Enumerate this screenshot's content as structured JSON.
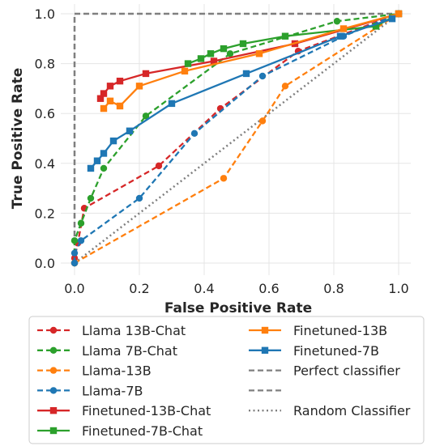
{
  "chart_data": {
    "type": "line",
    "xlabel": "False Positive Rate",
    "ylabel": "True Positive Rate",
    "xlim": [
      0,
      1
    ],
    "ylim": [
      0,
      1
    ],
    "xticks": [
      0.0,
      0.2,
      0.4,
      0.6,
      0.8,
      1.0
    ],
    "yticks": [
      0.0,
      0.2,
      0.4,
      0.6,
      0.8,
      1.0
    ],
    "xtick_labels": [
      "0.0",
      "0.2",
      "0.4",
      "0.6",
      "0.8",
      "1.0"
    ],
    "ytick_labels": [
      "0.0",
      "0.2",
      "0.4",
      "0.6",
      "0.8",
      "1.0"
    ],
    "grid": true,
    "legend_position": "below",
    "series": [
      {
        "name": "Llama 13B-Chat",
        "color": "#d62728",
        "linestyle": "dashed",
        "marker": "circle",
        "x": [
          0.0,
          0.0,
          0.01,
          0.03,
          0.26,
          0.45,
          0.69,
          1.0
        ],
        "y": [
          0.0,
          0.02,
          0.08,
          0.22,
          0.39,
          0.62,
          0.85,
          1.0
        ]
      },
      {
        "name": "Llama 7B-Chat",
        "color": "#2ca02c",
        "linestyle": "dashed",
        "marker": "circle",
        "x": [
          0.0,
          0.0,
          0.02,
          0.05,
          0.09,
          0.22,
          0.48,
          0.81,
          1.0
        ],
        "y": [
          0.0,
          0.09,
          0.16,
          0.26,
          0.38,
          0.59,
          0.84,
          0.97,
          1.0
        ]
      },
      {
        "name": "Llama-13B",
        "color": "#ff7f0e",
        "linestyle": "dashed",
        "marker": "circle",
        "x": [
          0.0,
          0.46,
          0.58,
          0.65,
          1.0
        ],
        "y": [
          0.0,
          0.34,
          0.57,
          0.71,
          1.0
        ]
      },
      {
        "name": "Llama-7B",
        "color": "#1f77b4",
        "linestyle": "dashed",
        "marker": "circle",
        "x": [
          0.0,
          0.0,
          0.02,
          0.2,
          0.37,
          0.58,
          0.83,
          1.0
        ],
        "y": [
          0.0,
          0.04,
          0.09,
          0.26,
          0.52,
          0.75,
          0.91,
          1.0
        ]
      },
      {
        "name": "Finetuned-13B-Chat",
        "color": "#d62728",
        "linestyle": "solid",
        "marker": "square",
        "x": [
          0.08,
          0.09,
          0.11,
          0.14,
          0.22,
          0.43,
          0.68,
          1.0
        ],
        "y": [
          0.66,
          0.68,
          0.71,
          0.73,
          0.76,
          0.81,
          0.88,
          1.0
        ]
      },
      {
        "name": "Finetuned-7B-Chat",
        "color": "#2ca02c",
        "linestyle": "solid",
        "marker": "square",
        "x": [
          0.35,
          0.39,
          0.42,
          0.46,
          0.52,
          0.65,
          0.93,
          1.0
        ],
        "y": [
          0.8,
          0.82,
          0.84,
          0.86,
          0.88,
          0.91,
          0.95,
          1.0
        ]
      },
      {
        "name": "Finetuned-13B",
        "color": "#ff7f0e",
        "linestyle": "solid",
        "marker": "square",
        "x": [
          0.09,
          0.11,
          0.14,
          0.2,
          0.34,
          0.57,
          0.83,
          1.0
        ],
        "y": [
          0.62,
          0.65,
          0.63,
          0.71,
          0.77,
          0.84,
          0.94,
          1.0
        ]
      },
      {
        "name": "Finetuned-7B",
        "color": "#1f77b4",
        "linestyle": "solid",
        "marker": "square",
        "x": [
          0.05,
          0.07,
          0.09,
          0.12,
          0.17,
          0.3,
          0.53,
          0.82,
          0.98
        ],
        "y": [
          0.38,
          0.41,
          0.44,
          0.49,
          0.53,
          0.64,
          0.76,
          0.91,
          0.98
        ]
      },
      {
        "name": "Perfect classifier",
        "color": "#7f7f7f",
        "linestyle": "dashed",
        "marker": "none",
        "x": [
          0,
          0,
          1
        ],
        "y": [
          0,
          1,
          1
        ]
      },
      {
        "name": "",
        "color": "#7f7f7f",
        "linestyle": "dashed",
        "marker": "none",
        "x": [],
        "y": []
      },
      {
        "name": "Random Classifier",
        "color": "#7f7f7f",
        "linestyle": "dotted",
        "marker": "none",
        "x": [
          0,
          1
        ],
        "y": [
          0,
          1
        ]
      }
    ]
  }
}
